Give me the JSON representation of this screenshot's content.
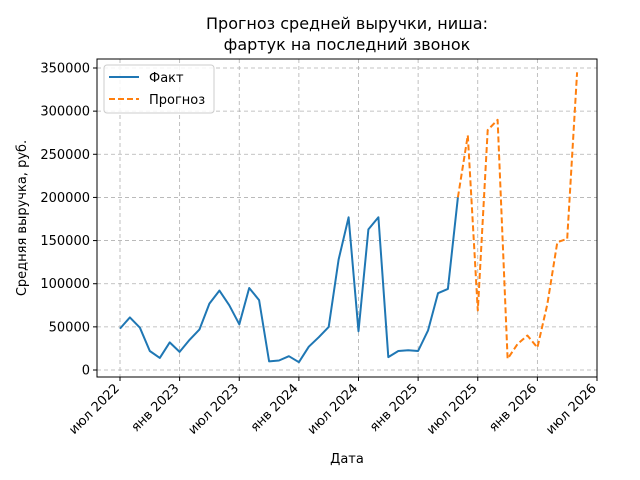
{
  "chart_data": {
    "type": "line",
    "title_line1": "Прогноз средней выручки, ниша:",
    "title_line2": "фартук на последний звонок",
    "xlabel": "Дата",
    "ylabel": "Средняя выручка, руб.",
    "x_ticks": [
      "июл 2022",
      "янв 2023",
      "июл 2023",
      "янв 2024",
      "июл 2024",
      "янв 2025",
      "июл 2025",
      "янв 2026",
      "июл 2026"
    ],
    "y_ticks": [
      "0",
      "50000",
      "100000",
      "150000",
      "200000",
      "250000",
      "300000",
      "350000"
    ],
    "ylim": [
      0,
      350000
    ],
    "grid": true,
    "legend_position": "top-left",
    "series": [
      {
        "name": "Факт",
        "color": "#1f77b4",
        "style": "solid",
        "x": [
          "2022-07",
          "2022-08",
          "2022-09",
          "2022-10",
          "2022-11",
          "2022-12",
          "2023-01",
          "2023-02",
          "2023-03",
          "2023-04",
          "2023-05",
          "2023-06",
          "2023-07",
          "2023-08",
          "2023-09",
          "2023-10",
          "2023-11",
          "2023-12",
          "2024-01",
          "2024-02",
          "2024-03",
          "2024-04",
          "2024-05",
          "2024-06",
          "2024-07",
          "2024-08",
          "2024-09",
          "2024-10",
          "2024-11",
          "2024-12",
          "2025-01",
          "2025-02",
          "2025-03",
          "2025-04",
          "2025-05"
        ],
        "values": [
          48000,
          61000,
          49000,
          22000,
          14000,
          32000,
          21000,
          35000,
          47000,
          77000,
          92000,
          75000,
          53000,
          95000,
          81000,
          10000,
          11000,
          16000,
          9000,
          27000,
          38000,
          50000,
          128000,
          177000,
          45000,
          163000,
          177000,
          15000,
          22000,
          23000,
          22000,
          46000,
          89000,
          94000,
          200000
        ]
      },
      {
        "name": "Прогноз",
        "color": "#ff7f0e",
        "style": "dashed",
        "x": [
          "2025-05",
          "2025-06",
          "2025-07",
          "2025-08",
          "2025-09",
          "2025-10",
          "2025-11",
          "2025-12",
          "2026-01",
          "2026-02",
          "2026-03",
          "2026-04",
          "2026-05"
        ],
        "values": [
          200000,
          272000,
          69000,
          278000,
          290000,
          13000,
          30000,
          40000,
          26000,
          76000,
          148000,
          152000,
          345000
        ]
      }
    ]
  }
}
